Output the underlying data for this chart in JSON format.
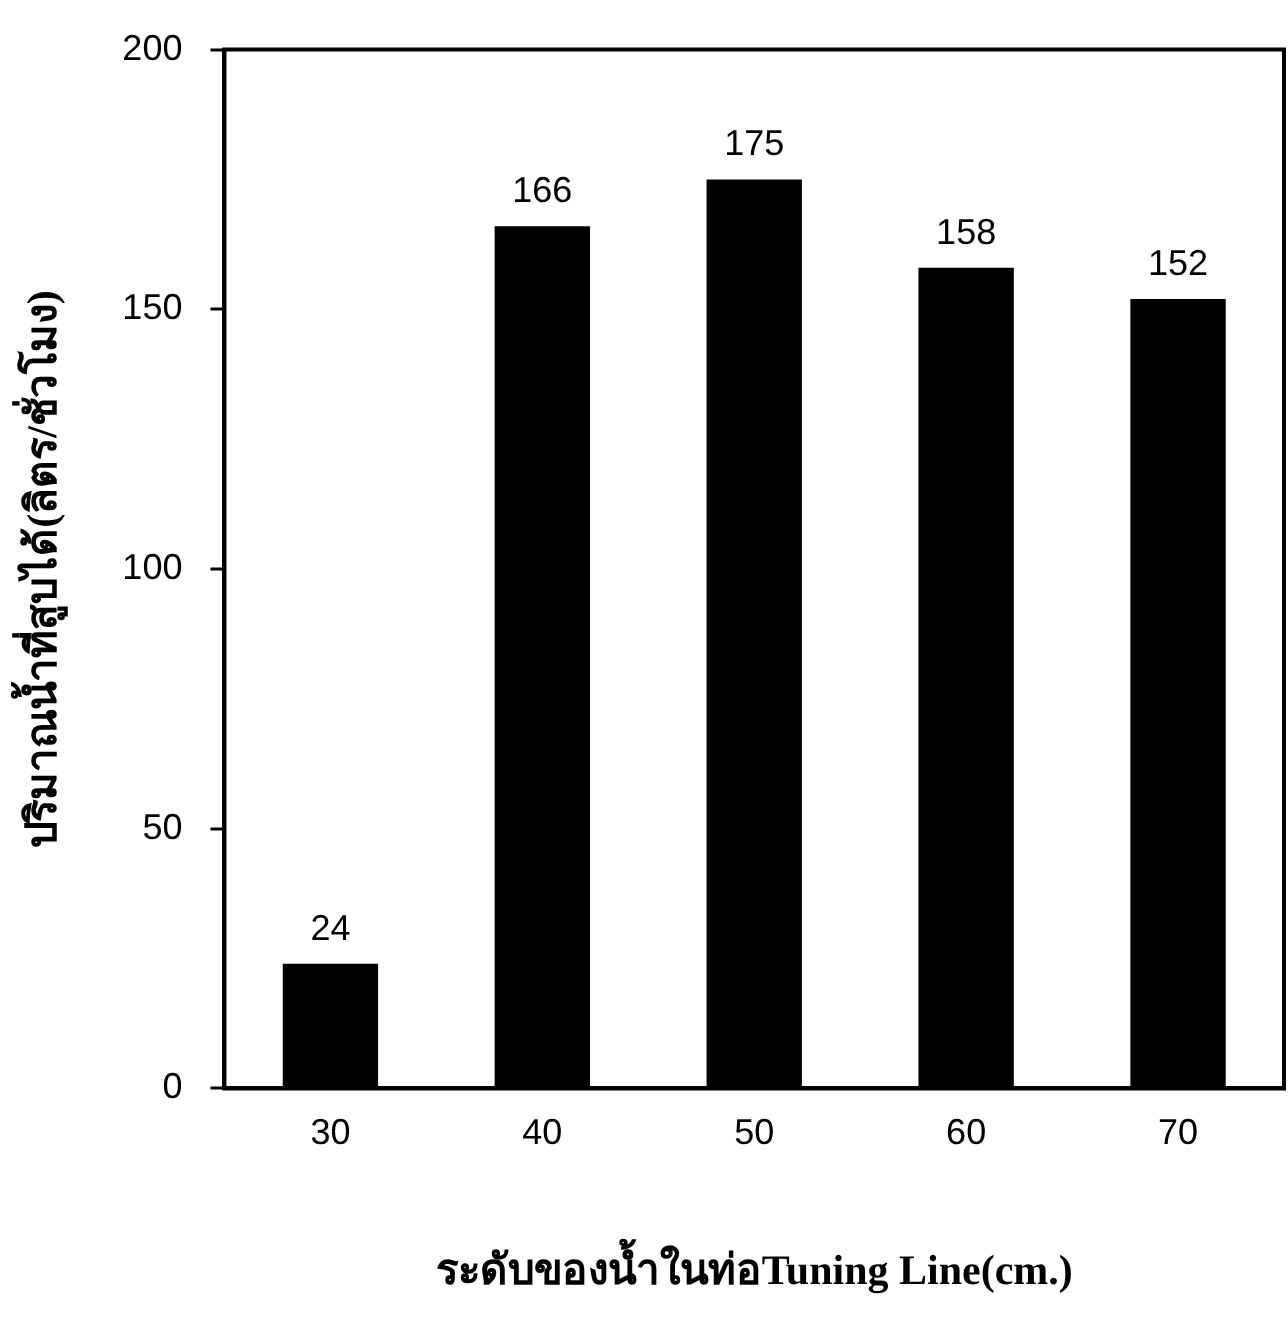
{
  "chart_data": {
    "type": "bar",
    "xlabel": "ระดับของน้ำในท่อTuning Line(cm.)",
    "ylabel": "ปริมาณน้ำที่สูบได้(ลิตร/ชั่วโมง)",
    "categories": [
      "30",
      "40",
      "50",
      "60",
      "70"
    ],
    "values": [
      24,
      166,
      175,
      158,
      152
    ],
    "color": "#000000",
    "ylim": [
      0,
      200
    ],
    "yticks": [
      0,
      50,
      100,
      150,
      200
    ],
    "grid": false,
    "legend": false,
    "data_labels": true
  }
}
